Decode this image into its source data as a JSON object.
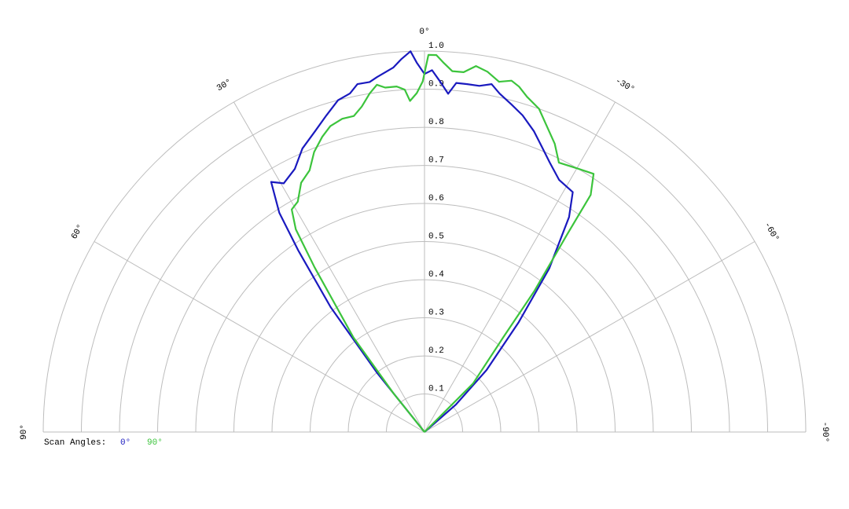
{
  "chart_data": {
    "type": "polar",
    "rlim": [
      0,
      1
    ],
    "rticks": [
      0.1,
      0.2,
      0.3,
      0.4,
      0.5,
      0.6,
      0.7,
      0.8,
      0.9,
      {
        "value": 1,
        "label": "1.0"
      }
    ],
    "thetalim": [
      -90,
      90
    ],
    "thetaticks": [
      {
        "value": 90,
        "label": "90°"
      },
      {
        "value": 60,
        "label": "60°"
      },
      {
        "value": 30,
        "label": "30°"
      },
      {
        "value": 0,
        "label": "0°"
      },
      {
        "value": -30,
        "label": "-30°"
      },
      {
        "value": -60,
        "label": "-60°"
      },
      {
        "value": -90,
        "label": "-90°"
      }
    ],
    "grid": true,
    "legend_title": "Scan Angles:",
    "series": [
      {
        "name": "0°",
        "color": "#1a1abf",
        "theta": [
          40,
          38.7,
          36.9,
          34.8,
          33.5,
          31.5,
          29.5,
          26.2,
          23.3,
          20.0,
          17.2,
          14.6,
          12.4,
          10.9,
          8.9,
          7.6,
          6.2,
          4.9,
          3.6,
          2.1,
          1.2,
          0,
          -1.2,
          -2.6,
          -4.0,
          -5.2,
          -7.0,
          -9.0,
          -10.9,
          -12.5,
          -14.8,
          -17.2,
          -20.0,
          -22.3,
          -24.9,
          -28.1,
          -31.7,
          -33.9,
          -37.3,
          -40.6,
          -45,
          -48.8,
          -50
        ],
        "values": [
          0,
          0.2,
          0.41,
          0.58,
          0.69,
          0.77,
          0.75,
          0.77,
          0.81,
          0.84,
          0.87,
          0.9,
          0.91,
          0.93,
          0.93,
          0.94,
          0.95,
          0.96,
          0.98,
          1.0,
          0.97,
          0.94,
          0.95,
          0.92,
          0.89,
          0.92,
          0.92,
          0.92,
          0.93,
          0.91,
          0.89,
          0.87,
          0.84,
          0.81,
          0.78,
          0.75,
          0.74,
          0.68,
          0.54,
          0.38,
          0.23,
          0.11,
          0
        ]
      },
      {
        "name": "90°",
        "color": "#3cc43c",
        "theta": [
          40,
          38.7,
          36.9,
          33.7,
          32.4,
          30.8,
          28.8,
          26.3,
          23.7,
          21.5,
          19.1,
          17.1,
          14.7,
          12.6,
          10.9,
          9.2,
          7.8,
          6.5,
          4.6,
          3.3,
          2.5,
          1.3,
          0.3,
          -0.6,
          -1.8,
          -3.0,
          -4.4,
          -6.2,
          -8.0,
          -9.9,
          -12.0,
          -13.9,
          -15.3,
          -17.0,
          -19.5,
          -21.4,
          -24.3,
          -26.5,
          -30.2,
          -33.2,
          -35.0,
          -35.8,
          -37.9,
          -39.8,
          -45,
          -48
        ],
        "values": [
          0,
          0.13,
          0.31,
          0.52,
          0.63,
          0.68,
          0.69,
          0.73,
          0.75,
          0.79,
          0.82,
          0.84,
          0.85,
          0.85,
          0.87,
          0.9,
          0.92,
          0.91,
          0.91,
          0.9,
          0.87,
          0.89,
          0.92,
          0.99,
          0.99,
          0.97,
          0.95,
          0.95,
          0.97,
          0.96,
          0.94,
          0.95,
          0.94,
          0.92,
          0.9,
          0.87,
          0.83,
          0.79,
          0.8,
          0.81,
          0.76,
          0.64,
          0.47,
          0.32,
          0.18,
          0
        ]
      }
    ]
  }
}
